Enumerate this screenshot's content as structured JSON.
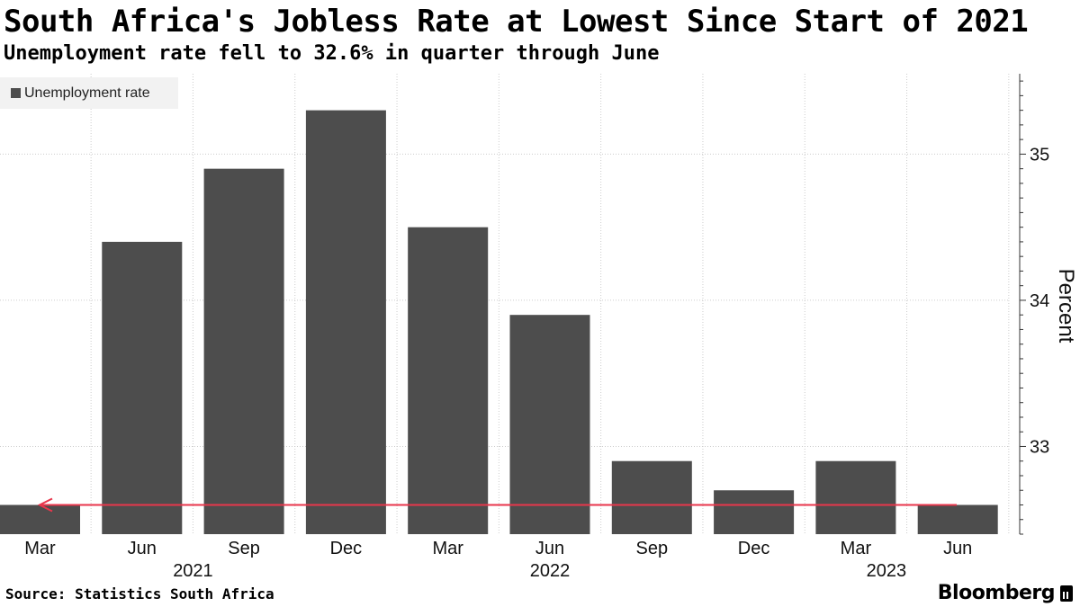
{
  "title": "South Africa's Jobless Rate at Lowest Since Start of 2021",
  "subtitle": "Unemployment rate fell to 32.6% in quarter through June",
  "source": "Source: Statistics South Africa",
  "brand": "Bloomberg",
  "colors": {
    "bar": "#4d4d4d",
    "reference_line": "#e8364c",
    "grid": "#cccccc",
    "legend_bg": "#f2f2f2"
  },
  "chart_data": {
    "type": "bar",
    "categories": [
      "Mar",
      "Jun",
      "Sep",
      "Dec",
      "Mar",
      "Jun",
      "Sep",
      "Dec",
      "Mar",
      "Jun"
    ],
    "year_labels": [
      {
        "label": "2021",
        "index": 1.5
      },
      {
        "label": "2022",
        "index": 5
      },
      {
        "label": "2023",
        "index": 8.3
      }
    ],
    "series": [
      {
        "name": "Unemployment rate",
        "values": [
          32.6,
          34.4,
          34.9,
          35.3,
          34.5,
          33.9,
          32.9,
          32.7,
          32.9,
          32.6
        ]
      }
    ],
    "ylabel": "Percent",
    "ylim": [
      32.4,
      35.55
    ],
    "yticks": [
      33,
      34,
      35
    ],
    "y_axis_side": "right",
    "reference_line": {
      "value": 32.6,
      "arrow": "left"
    },
    "grid": true,
    "legend_placement": "top-left"
  }
}
